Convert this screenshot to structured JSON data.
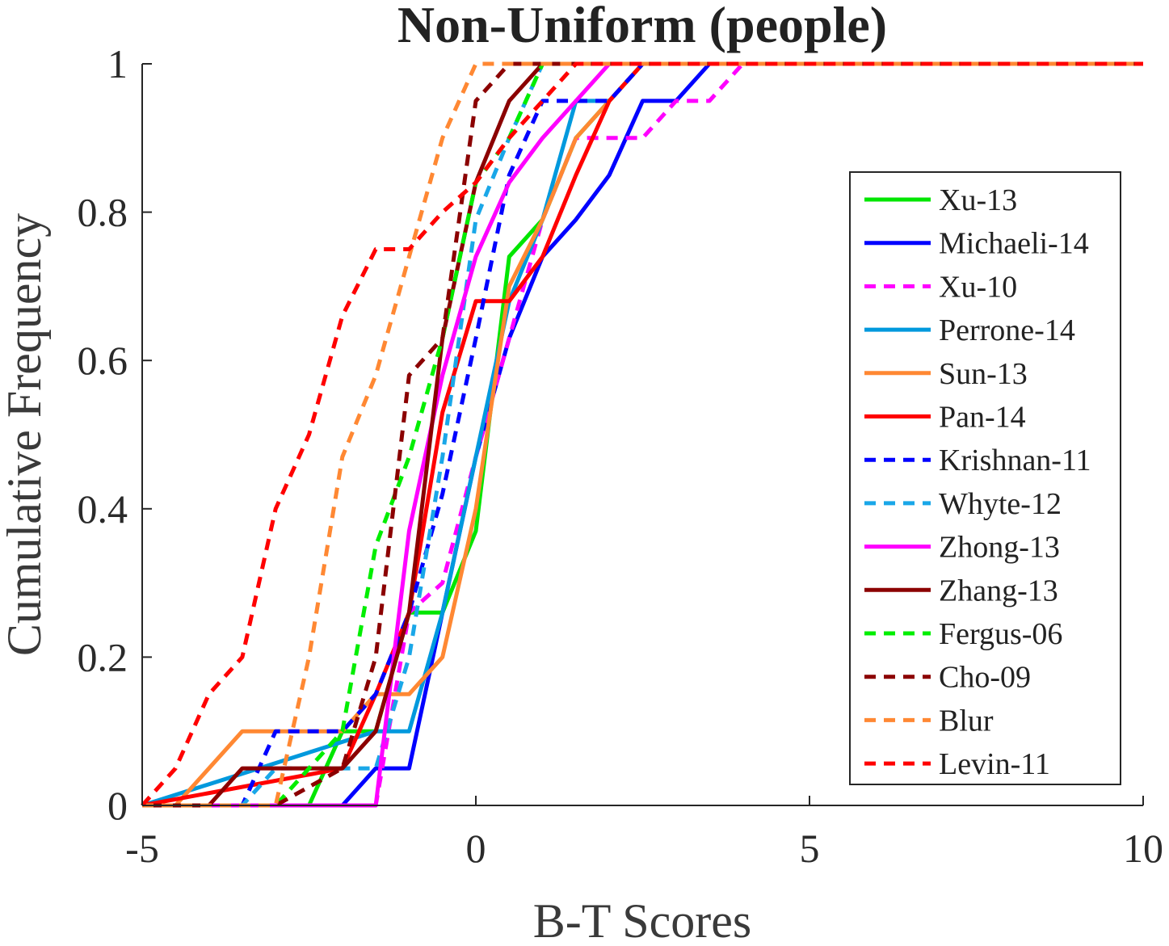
{
  "chart_data": {
    "type": "line",
    "title": "Non-Uniform (people)",
    "xlabel": "B-T Scores",
    "ylabel": "Cumulative Frequency",
    "xlim": [
      -5,
      10
    ],
    "ylim": [
      0,
      1
    ],
    "xticks": [
      -5,
      0,
      5,
      10
    ],
    "yticks": [
      0,
      0.2,
      0.4,
      0.6,
      0.8,
      1
    ],
    "xtick_labels": [
      "-5",
      "0",
      "5",
      "10"
    ],
    "ytick_labels": [
      "0",
      "0.2",
      "0.4",
      "0.6",
      "0.8",
      "1"
    ],
    "grid": false,
    "legend_position": "right",
    "series": [
      {
        "name": "Xu-13",
        "color": "#00e600",
        "dash": false,
        "points": [
          [
            -5,
            0
          ],
          [
            -2.5,
            0
          ],
          [
            -2,
            0.1
          ],
          [
            -1.5,
            0.1
          ],
          [
            -1,
            0.26
          ],
          [
            -0.5,
            0.26
          ],
          [
            0,
            0.37
          ],
          [
            0.5,
            0.74
          ],
          [
            1,
            0.79
          ],
          [
            1.5,
            0.9
          ],
          [
            2,
            0.95
          ],
          [
            2.5,
            1
          ],
          [
            10,
            1
          ]
        ]
      },
      {
        "name": "Michaeli-14",
        "color": "#0000ff",
        "dash": false,
        "points": [
          [
            -5,
            0
          ],
          [
            -2,
            0
          ],
          [
            -1.5,
            0.05
          ],
          [
            -1,
            0.05
          ],
          [
            -0.5,
            0.26
          ],
          [
            0,
            0.47
          ],
          [
            0.5,
            0.63
          ],
          [
            1,
            0.74
          ],
          [
            1.5,
            0.79
          ],
          [
            2,
            0.85
          ],
          [
            2.5,
            0.95
          ],
          [
            3,
            0.95
          ],
          [
            3.5,
            1
          ],
          [
            10,
            1
          ]
        ]
      },
      {
        "name": "Xu-10",
        "color": "#ff00ff",
        "dash": true,
        "points": [
          [
            -5,
            0
          ],
          [
            -1.5,
            0
          ],
          [
            -1,
            0.26
          ],
          [
            -0.5,
            0.3
          ],
          [
            0,
            0.47
          ],
          [
            0.5,
            0.63
          ],
          [
            1,
            0.79
          ],
          [
            1.5,
            0.9
          ],
          [
            2,
            0.9
          ],
          [
            2.5,
            0.9
          ],
          [
            3,
            0.95
          ],
          [
            3.5,
            0.95
          ],
          [
            4,
            1
          ],
          [
            10,
            1
          ]
        ]
      },
      {
        "name": "Perrone-14",
        "color": "#0099dd",
        "dash": false,
        "points": [
          [
            -5,
            0
          ],
          [
            -1.5,
            0.1
          ],
          [
            -1,
            0.1
          ],
          [
            -0.5,
            0.26
          ],
          [
            0,
            0.47
          ],
          [
            0.5,
            0.68
          ],
          [
            1,
            0.79
          ],
          [
            1.5,
            0.95
          ],
          [
            2,
            0.95
          ],
          [
            2.5,
            1
          ],
          [
            10,
            1
          ]
        ]
      },
      {
        "name": "Sun-13",
        "color": "#ff8833",
        "dash": false,
        "points": [
          [
            -5,
            0
          ],
          [
            -4.5,
            0
          ],
          [
            -3.5,
            0.1
          ],
          [
            -2,
            0.1
          ],
          [
            -1.5,
            0.15
          ],
          [
            -1,
            0.15
          ],
          [
            -0.5,
            0.2
          ],
          [
            0,
            0.4
          ],
          [
            0.5,
            0.7
          ],
          [
            1,
            0.79
          ],
          [
            1.5,
            0.9
          ],
          [
            2,
            0.95
          ],
          [
            2.5,
            1
          ],
          [
            10,
            1
          ]
        ]
      },
      {
        "name": "Pan-14",
        "color": "#ff0000",
        "dash": false,
        "points": [
          [
            -5,
            0
          ],
          [
            -2,
            0.05
          ],
          [
            -1.5,
            0.15
          ],
          [
            -1,
            0.26
          ],
          [
            -0.5,
            0.53
          ],
          [
            0,
            0.68
          ],
          [
            0.5,
            0.68
          ],
          [
            1,
            0.74
          ],
          [
            1.5,
            0.85
          ],
          [
            2,
            0.95
          ],
          [
            2.5,
            1
          ],
          [
            10,
            1
          ]
        ]
      },
      {
        "name": "Krishnan-11",
        "color": "#0000ff",
        "dash": true,
        "points": [
          [
            -5,
            0
          ],
          [
            -3.5,
            0
          ],
          [
            -3,
            0.1
          ],
          [
            -2,
            0.1
          ],
          [
            -1.5,
            0.15
          ],
          [
            -1,
            0.26
          ],
          [
            -0.5,
            0.42
          ],
          [
            0,
            0.63
          ],
          [
            0.5,
            0.85
          ],
          [
            1,
            0.95
          ],
          [
            1.5,
            0.95
          ],
          [
            2,
            0.95
          ],
          [
            2.5,
            1
          ],
          [
            10,
            1
          ]
        ]
      },
      {
        "name": "Whyte-12",
        "color": "#1aa7e8",
        "dash": true,
        "points": [
          [
            -5,
            0
          ],
          [
            -3.5,
            0
          ],
          [
            -3,
            0.05
          ],
          [
            -1.5,
            0.05
          ],
          [
            -1,
            0.2
          ],
          [
            -0.5,
            0.47
          ],
          [
            0,
            0.79
          ],
          [
            0.5,
            0.9
          ],
          [
            1,
            1
          ],
          [
            10,
            1
          ]
        ]
      },
      {
        "name": "Zhong-13",
        "color": "#ff00ff",
        "dash": false,
        "points": [
          [
            -5,
            0
          ],
          [
            -1.5,
            0
          ],
          [
            -1,
            0.37
          ],
          [
            -0.5,
            0.58
          ],
          [
            0,
            0.74
          ],
          [
            0.5,
            0.84
          ],
          [
            1,
            0.9
          ],
          [
            1.5,
            0.95
          ],
          [
            2,
            1
          ],
          [
            10,
            1
          ]
        ]
      },
      {
        "name": "Zhang-13",
        "color": "#8b0000",
        "dash": false,
        "points": [
          [
            -5,
            0
          ],
          [
            -4,
            0
          ],
          [
            -3.5,
            0.05
          ],
          [
            -2,
            0.05
          ],
          [
            -1.5,
            0.1
          ],
          [
            -1,
            0.26
          ],
          [
            -0.5,
            0.63
          ],
          [
            0,
            0.84
          ],
          [
            0.5,
            0.95
          ],
          [
            1,
            1
          ],
          [
            10,
            1
          ]
        ]
      },
      {
        "name": "Fergus-06",
        "color": "#00ee00",
        "dash": true,
        "points": [
          [
            -5,
            0
          ],
          [
            -3,
            0
          ],
          [
            -2.5,
            0.05
          ],
          [
            -2,
            0.1
          ],
          [
            -1.5,
            0.35
          ],
          [
            -1,
            0.47
          ],
          [
            -0.5,
            0.63
          ],
          [
            0,
            0.84
          ],
          [
            0.5,
            0.9
          ],
          [
            1,
            1
          ],
          [
            10,
            1
          ]
        ]
      },
      {
        "name": "Cho-09",
        "color": "#8b0000",
        "dash": true,
        "points": [
          [
            -5,
            0
          ],
          [
            -3,
            0
          ],
          [
            -2,
            0.05
          ],
          [
            -1.5,
            0.2
          ],
          [
            -1,
            0.58
          ],
          [
            -0.5,
            0.63
          ],
          [
            0,
            0.95
          ],
          [
            0.5,
            1
          ],
          [
            10,
            1
          ]
        ]
      },
      {
        "name": "Blur",
        "color": "#ff8833",
        "dash": true,
        "points": [
          [
            -5,
            0
          ],
          [
            -3,
            0
          ],
          [
            -2.5,
            0.2
          ],
          [
            -2,
            0.47
          ],
          [
            -1.5,
            0.58
          ],
          [
            -1,
            0.74
          ],
          [
            -0.5,
            0.9
          ],
          [
            0,
            1
          ],
          [
            10,
            1
          ]
        ]
      },
      {
        "name": "Levin-11",
        "color": "#ff0000",
        "dash": true,
        "points": [
          [
            -5,
            0
          ],
          [
            -4.5,
            0.05
          ],
          [
            -4,
            0.15
          ],
          [
            -3.5,
            0.2
          ],
          [
            -3,
            0.4
          ],
          [
            -2.5,
            0.5
          ],
          [
            -2,
            0.66
          ],
          [
            -1.5,
            0.75
          ],
          [
            -1,
            0.75
          ],
          [
            -0.5,
            0.8
          ],
          [
            0,
            0.84
          ],
          [
            0.5,
            0.9
          ],
          [
            1,
            0.95
          ],
          [
            1.5,
            1
          ],
          [
            10,
            1
          ]
        ]
      }
    ]
  }
}
